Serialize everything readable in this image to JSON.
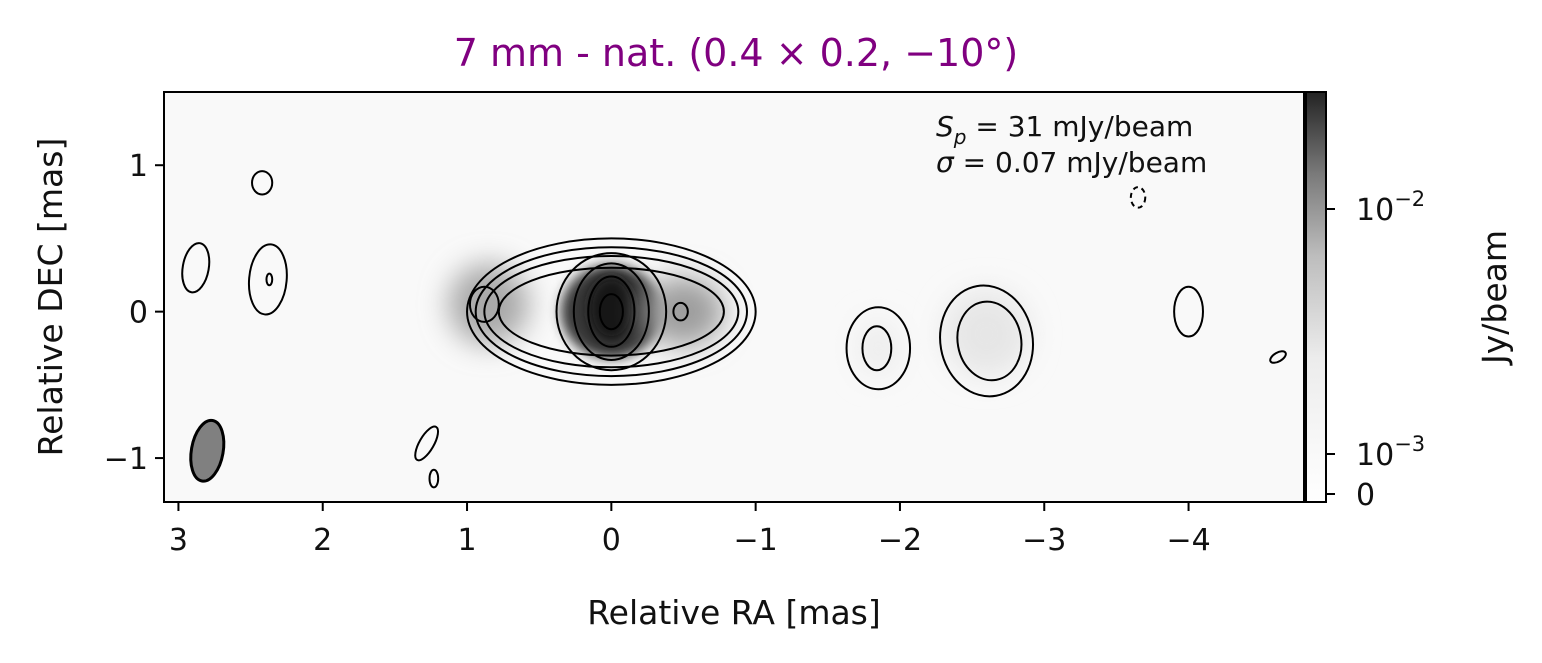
{
  "chart_data": {
    "type": "heatmap",
    "title": "7 mm - nat. (0.4 × 0.2, −10°)",
    "title_color": "#800080",
    "xlabel": "Relative RA [mas]",
    "ylabel": "Relative DEC [mas]",
    "xlim": [
      3.1,
      -4.8
    ],
    "ylim": [
      -1.3,
      1.5
    ],
    "x_ticks": [
      3,
      2,
      1,
      0,
      -1,
      -2,
      -3,
      -4
    ],
    "x_tick_labels": [
      "3",
      "2",
      "1",
      "0",
      "−1",
      "−2",
      "−3",
      "−4"
    ],
    "y_ticks": [
      1,
      0,
      -1
    ],
    "y_tick_labels": [
      "1",
      "0",
      "−1"
    ],
    "colorbar": {
      "label": "Jy/beam",
      "scale": "log",
      "ticks": [
        {
          "value": 0.01,
          "base": "10",
          "exp": "−2"
        },
        {
          "value": 0.001,
          "base": "10",
          "exp": "−3"
        },
        {
          "value": 0,
          "label": "0"
        }
      ],
      "colormap": "grey"
    },
    "annotations": {
      "peak_symbol": "S",
      "peak_sub": "p",
      "peak_text": " = 31 mJy/beam",
      "sigma_symbol": "σ",
      "sigma_text": " = 0.07 mJy/beam",
      "peak_mJy_per_beam": 31,
      "sigma_mJy_per_beam": 0.07
    },
    "beam": {
      "x": 2.8,
      "y": -0.95,
      "major_mas": 0.4,
      "minor_mas": 0.2,
      "pa_deg": -10
    },
    "grid": false,
    "emission": [
      {
        "x": 0.0,
        "y": 0.0,
        "rx": 0.35,
        "ry": 0.32,
        "level": 0.85
      },
      {
        "x": 0.0,
        "y": 0.02,
        "rx": 0.16,
        "ry": 0.22,
        "level": 1.0
      },
      {
        "x": 0.85,
        "y": 0.05,
        "rx": 0.28,
        "ry": 0.28,
        "level": 0.35
      },
      {
        "x": -0.5,
        "y": 0.0,
        "rx": 0.28,
        "ry": 0.24,
        "level": 0.4
      },
      {
        "x": -2.6,
        "y": -0.15,
        "rx": 0.3,
        "ry": 0.3,
        "level": 0.08
      },
      {
        "x": -1.85,
        "y": -0.25,
        "rx": 0.15,
        "ry": 0.2,
        "level": 0.05
      }
    ],
    "contours": [
      {
        "x": 0.0,
        "y": 0.0,
        "rx": 1.0,
        "ry": 0.5,
        "rot": 0
      },
      {
        "x": 0.0,
        "y": 0.0,
        "rx": 0.94,
        "ry": 0.44,
        "rot": 0
      },
      {
        "x": 0.0,
        "y": 0.0,
        "rx": 0.88,
        "ry": 0.38,
        "rot": 0
      },
      {
        "x": 0.0,
        "y": 0.0,
        "rx": 0.78,
        "ry": 0.3,
        "rot": 0
      },
      {
        "x": 0.0,
        "y": 0.0,
        "rx": 0.38,
        "ry": 0.4,
        "rot": 0
      },
      {
        "x": 0.0,
        "y": 0.0,
        "rx": 0.26,
        "ry": 0.33,
        "rot": 0
      },
      {
        "x": 0.0,
        "y": 0.0,
        "rx": 0.16,
        "ry": 0.24,
        "rot": 0
      },
      {
        "x": 0.0,
        "y": 0.0,
        "rx": 0.08,
        "ry": 0.12,
        "rot": 0
      },
      {
        "x": 0.88,
        "y": 0.05,
        "rx": 0.1,
        "ry": 0.12,
        "rot": 0
      },
      {
        "x": -0.48,
        "y": 0.0,
        "rx": 0.05,
        "ry": 0.06,
        "rot": 0
      },
      {
        "x": 2.88,
        "y": 0.3,
        "rx": 0.09,
        "ry": 0.17,
        "rot": 10
      },
      {
        "x": 2.42,
        "y": 0.88,
        "rx": 0.07,
        "ry": 0.08,
        "rot": 0
      },
      {
        "x": 2.38,
        "y": 0.22,
        "rx": 0.13,
        "ry": 0.24,
        "rot": 5
      },
      {
        "x": 2.37,
        "y": 0.22,
        "rx": 0.02,
        "ry": 0.04,
        "rot": 0
      },
      {
        "x": 1.28,
        "y": -0.9,
        "rx": 0.05,
        "ry": 0.13,
        "rot": 30
      },
      {
        "x": 1.23,
        "y": -1.14,
        "rx": 0.03,
        "ry": 0.06,
        "rot": 0
      },
      {
        "x": -1.85,
        "y": -0.25,
        "rx": 0.22,
        "ry": 0.28,
        "rot": 0
      },
      {
        "x": -1.84,
        "y": -0.25,
        "rx": 0.1,
        "ry": 0.15,
        "rot": 0
      },
      {
        "x": -2.6,
        "y": -0.2,
        "rx": 0.32,
        "ry": 0.38,
        "rot": -10
      },
      {
        "x": -2.62,
        "y": -0.2,
        "rx": 0.22,
        "ry": 0.27,
        "rot": -10
      },
      {
        "x": -4.0,
        "y": 0.0,
        "rx": 0.1,
        "ry": 0.17,
        "rot": 0
      },
      {
        "x": -4.62,
        "y": -0.31,
        "rx": 0.06,
        "ry": 0.03,
        "rot": -30
      },
      {
        "x": -3.65,
        "y": 0.78,
        "rx": 0.05,
        "ry": 0.07,
        "rot": 0,
        "dashed": true
      }
    ]
  }
}
